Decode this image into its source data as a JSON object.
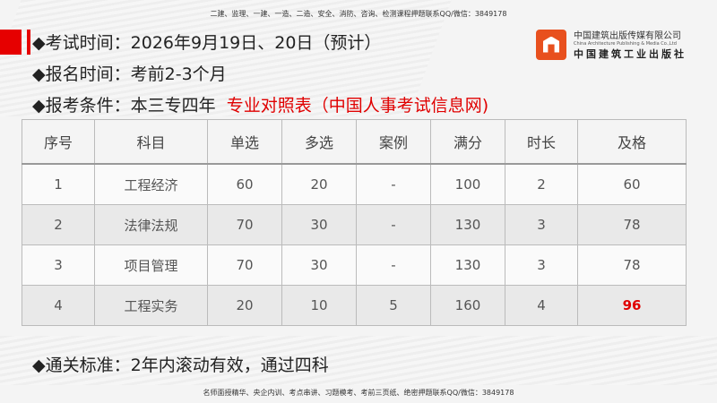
{
  "top_note": "二建、监理、一建、一造、二造、安全、消防、咨询、检测课程押题联系QQ/微信：3849178",
  "bottom_note": "名师面授精华、央企内训、考点串讲、习题模考、考前三页纸、绝密押题联系QQ/微信：3849178",
  "logo": {
    "cn": "中国建筑出版传媒有限公司",
    "en": "China Architecture Publishing & Media Co.,Ltd",
    "calligraphy": "中国建筑工业出版社"
  },
  "lines": [
    {
      "bullet": "◆",
      "label": "考试时间：",
      "value": "2026年9月19日、20日（预计）"
    },
    {
      "bullet": "◆",
      "label": "报名时间：",
      "value": "考前2-3个月"
    },
    {
      "bullet": "◆",
      "label": "报考条件：",
      "value": "本三专四年",
      "link": "专业对照表（中国人事考试信息网)"
    }
  ],
  "footer_line": {
    "bullet": "◆",
    "label": "通关标准：",
    "value": "2年内滚动有效，通过四科"
  },
  "table": {
    "headers": [
      "序号",
      "科目",
      "单选",
      "多选",
      "案例",
      "满分",
      "时长",
      "及格"
    ],
    "rows": [
      [
        "1",
        "工程经济",
        "60",
        "20",
        "-",
        "100",
        "2",
        "60"
      ],
      [
        "2",
        "法律法规",
        "70",
        "30",
        "-",
        "130",
        "3",
        "78"
      ],
      [
        "3",
        "项目管理",
        "70",
        "30",
        "-",
        "130",
        "3",
        "78"
      ],
      [
        "4",
        "工程实务",
        "20",
        "10",
        "5",
        "160",
        "4",
        "96"
      ]
    ]
  },
  "colors": {
    "accent": "#e00000"
  }
}
